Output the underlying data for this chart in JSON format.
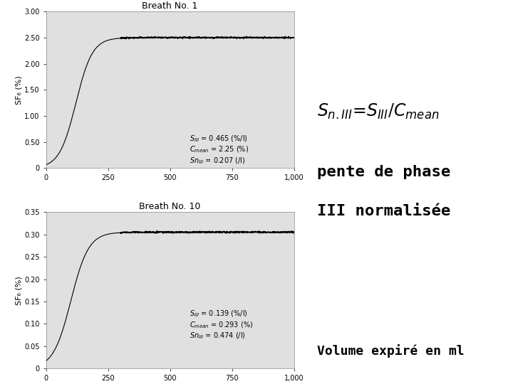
{
  "bg_color": "#d8d8d8",
  "white_bg": "#ffffff",
  "plot_bg": "#e0e0e0",
  "line_color": "#000000",
  "title1": "Breath No. 1",
  "title2": "Breath No. 10",
  "ylabel": "SF₆ (%)",
  "xlim": [
    0,
    1000
  ],
  "ylim1": [
    0,
    3.0
  ],
  "ylim2": [
    0,
    0.35
  ],
  "yticks1": [
    0,
    0.5,
    1.0,
    1.5,
    2.0,
    2.5,
    3.0
  ],
  "yticks2": [
    0,
    0.05,
    0.1,
    0.15,
    0.2,
    0.25,
    0.3,
    0.35
  ],
  "xticks": [
    0,
    250,
    500,
    750,
    1000
  ],
  "ytick_labels1": [
    "0",
    "0.50",
    "1.00",
    "1.50",
    "2.00",
    "2.50",
    "3.00"
  ],
  "ytick_labels2": [
    "0",
    "0.05",
    "0.10",
    "0.15",
    "0.20",
    "0.25",
    "0.30",
    "0.35"
  ],
  "xtick_labels": [
    "0",
    "250",
    "500",
    "750",
    "1,000"
  ],
  "text_line1": "pente de phase",
  "text_line2": "III normalisée",
  "text_bottom": "Volume expiré en ml"
}
